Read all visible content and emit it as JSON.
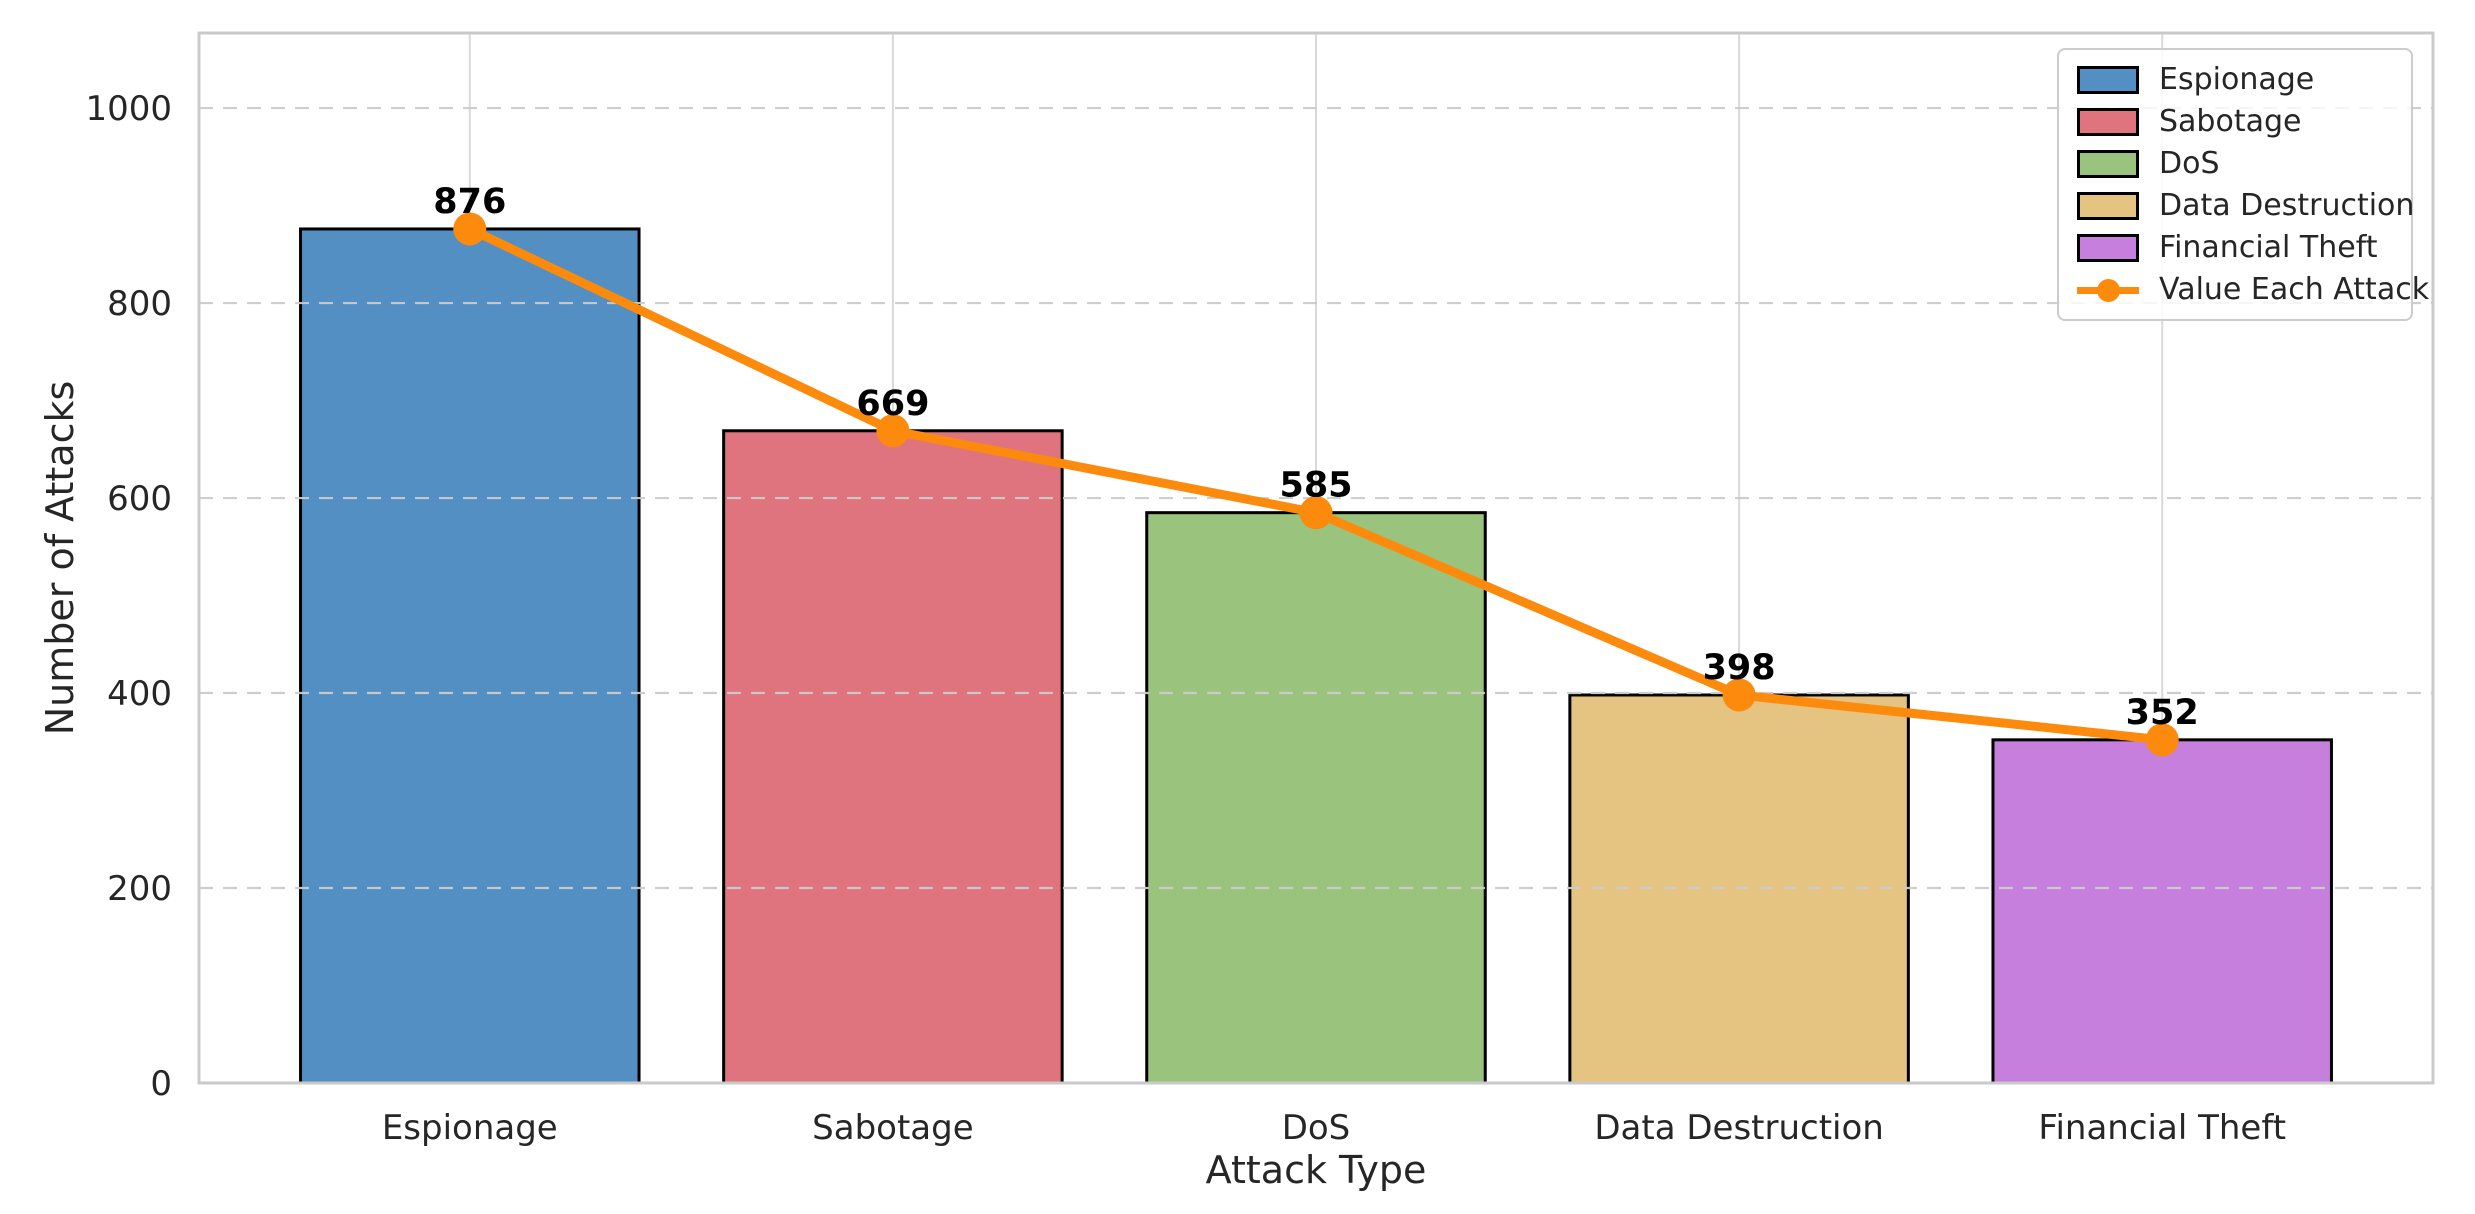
{
  "chart_data": {
    "type": "bar",
    "title": "",
    "xlabel": "Attack Type",
    "ylabel": "Number of Attacks",
    "categories": [
      "Espionage",
      "Sabotage",
      "DoS",
      "Data Destruction",
      "Financial Theft"
    ],
    "values": [
      876,
      669,
      585,
      398,
      352
    ],
    "data_labels": [
      "876",
      "669",
      "585",
      "398",
      "352"
    ],
    "bar_colors": [
      "#538FC3",
      "#DF747E",
      "#9AC47D",
      "#E5C381",
      "#C77FDE"
    ],
    "bar_edge_color": "#000000",
    "line_overlay": {
      "name": "Value Each Attack",
      "values": [
        876,
        669,
        585,
        398,
        352
      ],
      "color": "#FC8A0D",
      "marker": "circle"
    },
    "ylim": [
      0,
      1077
    ],
    "yticks": [
      "0",
      "200",
      "400",
      "600",
      "800",
      "1000"
    ],
    "ytick_values": [
      0,
      200,
      400,
      600,
      800,
      1000
    ],
    "xlim": [
      -0.64,
      4.64
    ],
    "grid": {
      "horizontal_style": "dashed",
      "vertical_style": "solid",
      "color": "#cccccc"
    },
    "axis_colors": {
      "spine": "#c9c9c9",
      "tick_text": "#262626",
      "annotation_text": "#000000"
    },
    "legend": {
      "position": "upper right",
      "entries": [
        {
          "label": "Espionage",
          "type": "patch",
          "color": "#538FC3"
        },
        {
          "label": "Sabotage",
          "type": "patch",
          "color": "#DF747E"
        },
        {
          "label": "DoS",
          "type": "patch",
          "color": "#9AC47D"
        },
        {
          "label": "Data Destruction",
          "type": "patch",
          "color": "#E5C381"
        },
        {
          "label": "Financial Theft",
          "type": "patch",
          "color": "#C77FDE"
        },
        {
          "label": "Value Each Attack",
          "type": "line",
          "color": "#FC8A0D"
        }
      ]
    }
  }
}
